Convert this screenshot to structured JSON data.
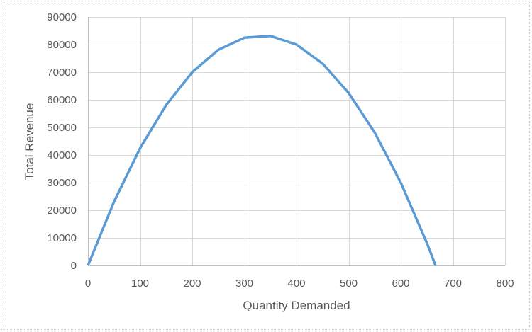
{
  "chart_data": {
    "type": "line",
    "title": "",
    "xlabel": "Quantity Demanded",
    "ylabel": "Total Revenue",
    "xlim": [
      0,
      800
    ],
    "ylim": [
      0,
      90000
    ],
    "x_ticks": [
      0,
      100,
      200,
      300,
      400,
      500,
      600,
      700,
      800
    ],
    "y_ticks": [
      0,
      10000,
      20000,
      30000,
      40000,
      50000,
      60000,
      70000,
      80000,
      90000
    ],
    "grid": true,
    "legend": null,
    "series": [
      {
        "name": "Total Revenue",
        "color": "#5b9bd5",
        "x": [
          0,
          50,
          100,
          150,
          200,
          250,
          300,
          350,
          400,
          450,
          500,
          550,
          600,
          650,
          666.67
        ],
        "values": [
          0,
          23125,
          42500,
          58125,
          70000,
          78125,
          82500,
          83125,
          80000,
          73125,
          62500,
          48125,
          30000,
          8125,
          0
        ]
      }
    ]
  },
  "colors": {
    "line": "#5b9bd5",
    "grid": "#d9d9d9",
    "axis": "#bfbfbf",
    "text": "#595959"
  }
}
